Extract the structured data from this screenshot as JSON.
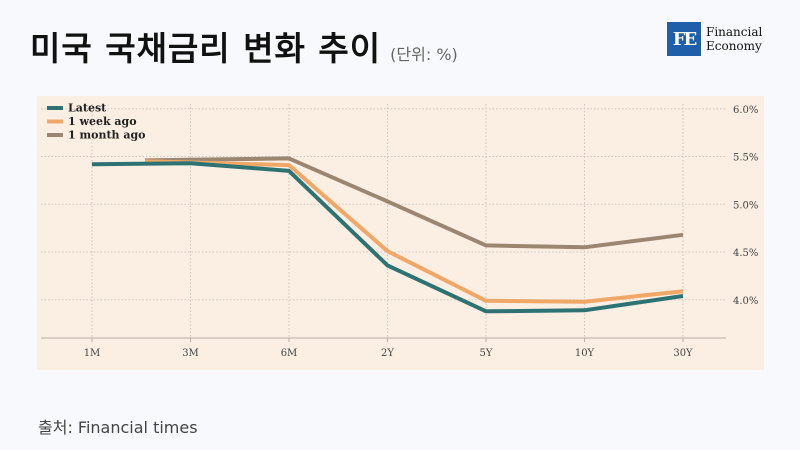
{
  "header": {
    "title": "미국 국채금리 변화 추이",
    "subtitle": "(단위: %)"
  },
  "logo": {
    "mark": "FE",
    "line1": "Financial",
    "line2": "Economy"
  },
  "source": "출처: Financial times",
  "colors": {
    "latest": "#2e7374",
    "week": "#f0a868",
    "month": "#9b8672",
    "panel": "#fbeee2",
    "logo": "#1f5ea8"
  },
  "chart_data": {
    "type": "line",
    "categories": [
      "1M",
      "3M",
      "6M",
      "2Y",
      "5Y",
      "10Y",
      "30Y"
    ],
    "ylim": [
      3.6,
      6.05
    ],
    "yticks": [
      "6.0%",
      "5.5%",
      "5.0%",
      "4.5%",
      "4.0%"
    ],
    "ytick_values": [
      6.0,
      5.5,
      5.0,
      4.5,
      4.0
    ],
    "grid": true,
    "legend": "top-left",
    "series": [
      {
        "name": "Latest",
        "color": "#2e7374",
        "values": [
          5.42,
          5.43,
          5.35,
          4.36,
          3.88,
          3.89,
          4.04
        ]
      },
      {
        "name": "1 week ago",
        "color": "#f0a868",
        "values": [
          null,
          5.45,
          5.41,
          4.51,
          3.99,
          3.98,
          4.09
        ]
      },
      {
        "name": "1 month ago",
        "color": "#9b8672",
        "values": [
          null,
          5.46,
          5.48,
          5.03,
          4.57,
          4.55,
          4.68
        ]
      }
    ]
  }
}
